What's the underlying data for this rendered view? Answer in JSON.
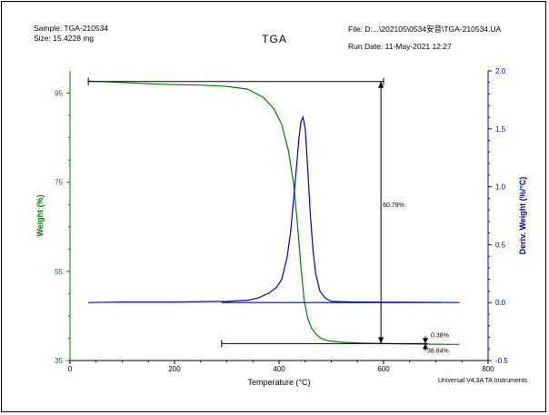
{
  "header": {
    "sample": "Sample: TGA-210534",
    "size": "Size:  15.4228 mg",
    "title": "TGA",
    "file": "File: D:...\\202105\\0534安音\\TGA-210534.UA",
    "run_date": "Run Date: 11-May-2021 12:27",
    "instrument": "Universal V4.3A TA Instruments"
  },
  "chart_data": {
    "type": "line",
    "xlabel": "Temperature (°C)",
    "ylabel_left": "Weight (%)",
    "ylabel_right": "Deriv. Weight (%/°C)",
    "xlim": [
      0,
      800
    ],
    "ylim_left": [
      35,
      100
    ],
    "ylim_right": [
      -0.5,
      2.0
    ],
    "x_ticks": [
      0,
      200,
      400,
      600,
      800
    ],
    "y_left_ticks": [
      35,
      55,
      75,
      95
    ],
    "y_right_ticks": [
      -0.5,
      0.0,
      0.5,
      1.0,
      1.5,
      2.0
    ],
    "colors": {
      "weight": "#008000",
      "deriv": "#0000cc",
      "axis_left": "#008000",
      "axis_right": "#0000cc",
      "annot": "#000000"
    },
    "series": [
      {
        "name": "Weight (%)",
        "axis": "left",
        "x": [
          35,
          60,
          100,
          150,
          200,
          250,
          300,
          340,
          370,
          390,
          405,
          418,
          428,
          435,
          442,
          448,
          455,
          462,
          470,
          480,
          495,
          520,
          560,
          600,
          650,
          700,
          745
        ],
        "y": [
          97.7,
          97.6,
          97.4,
          97.1,
          96.9,
          96.8,
          96.5,
          95.9,
          94.0,
          91.5,
          88.0,
          82.0,
          74.5,
          66.0,
          56.0,
          48.5,
          44.5,
          42.3,
          41.0,
          40.0,
          39.4,
          39.1,
          38.9,
          38.8,
          38.7,
          38.65,
          38.6
        ]
      },
      {
        "name": "Deriv. Weight (%/°C)",
        "axis": "right",
        "x": [
          35,
          100,
          200,
          300,
          340,
          360,
          380,
          395,
          405,
          415,
          422,
          428,
          433,
          438,
          442,
          446,
          450,
          455,
          460,
          465,
          470,
          478,
          488,
          500,
          550,
          650,
          745
        ],
        "y": [
          0.0,
          0.005,
          0.005,
          0.01,
          0.02,
          0.04,
          0.08,
          0.13,
          0.2,
          0.38,
          0.6,
          0.9,
          1.15,
          1.42,
          1.56,
          1.6,
          1.5,
          1.15,
          0.75,
          0.45,
          0.25,
          0.1,
          0.04,
          0.01,
          0.005,
          0.003,
          0.0
        ]
      }
    ],
    "annotations": {
      "step_top_weight": 97.6,
      "step_bottom_weight": 38.8,
      "step_label": "60.78%",
      "residue_label": "38.84%",
      "residue_step_label": "0.38%"
    }
  }
}
